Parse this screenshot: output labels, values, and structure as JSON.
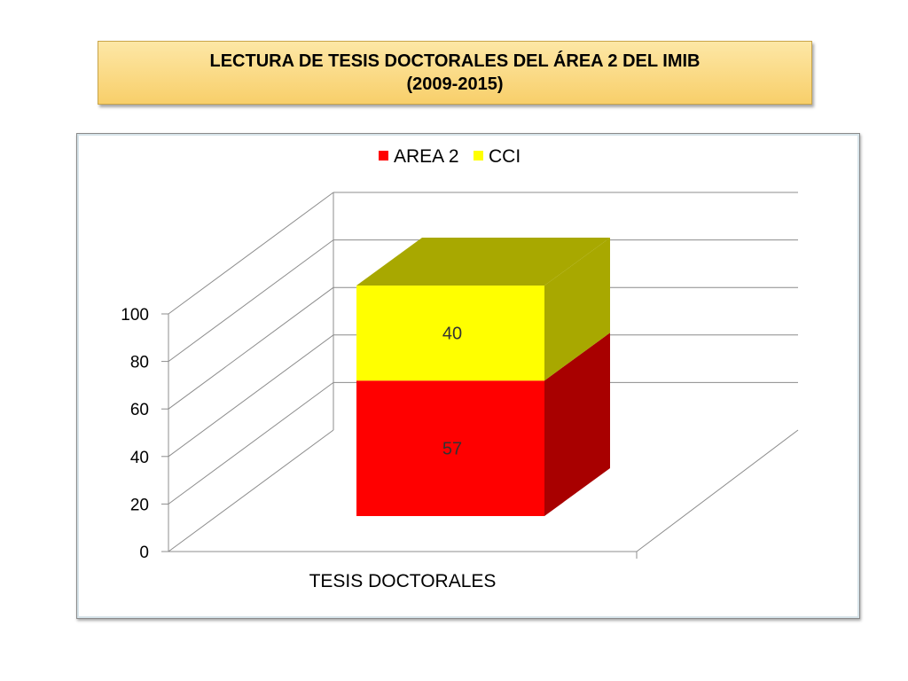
{
  "title": {
    "line1": "LECTURA DE TESIS DOCTORALES DEL ÁREA 2 DEL IMIB",
    "line2": "(2009-2015)"
  },
  "chart_data": {
    "type": "bar",
    "stacked": true,
    "three_d": true,
    "categories": [
      "TESIS DOCTORALES"
    ],
    "series": [
      {
        "name": "AREA 2",
        "values": [
          57
        ],
        "color": "#ff0000",
        "side_color": "#a80000"
      },
      {
        "name": "CCI",
        "values": [
          40
        ],
        "color": "#ffff00",
        "side_color": "#a8a800"
      }
    ],
    "yticks": [
      0,
      20,
      40,
      60,
      80,
      100
    ],
    "ylim": [
      0,
      100
    ],
    "legend_position": "top",
    "grid": true
  }
}
